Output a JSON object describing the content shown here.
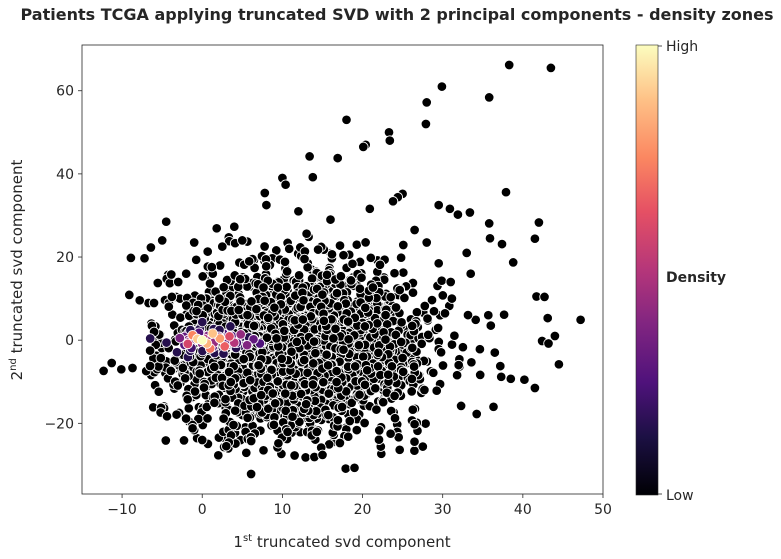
{
  "chart_data": {
    "type": "scatter",
    "title": "Patients TCGA applying truncated SVD with 2 principal components - density zones",
    "xlabel": {
      "prefix": "1",
      "superscript": "st",
      "text": " truncated svd component"
    },
    "ylabel": {
      "prefix": "2",
      "superscript": "nd",
      "text": " truncated svd component"
    },
    "xlim": [
      -15,
      50
    ],
    "ylim": [
      -37,
      71
    ],
    "xticks": [
      -10,
      0,
      10,
      20,
      30,
      40,
      50
    ],
    "yticks": [
      -20,
      0,
      20,
      40,
      60
    ],
    "xtick_labels": [
      "−10",
      "0",
      "10",
      "20",
      "30",
      "40",
      "50"
    ],
    "ytick_labels": [
      "−20",
      "0",
      "20",
      "40",
      "60"
    ],
    "grid": false,
    "colormap": "magma",
    "colorbar": {
      "title": "Density",
      "high_label": "High",
      "low_label": "Low"
    },
    "marker": {
      "edge_color": "#ffffff",
      "fill_color": "#000000"
    },
    "cluster": {
      "description_center": [
        12,
        -2
      ],
      "spread": [
        9,
        11
      ],
      "count": 2600
    },
    "outliers": [
      [
        38.3,
        66.2
      ],
      [
        43.5,
        65.5
      ],
      [
        29.9,
        61.0
      ],
      [
        28.0,
        57.2
      ],
      [
        35.8,
        58.4
      ],
      [
        18.0,
        53.0
      ],
      [
        27.9,
        52.0
      ],
      [
        23.3,
        50.0
      ],
      [
        23.4,
        48.0
      ],
      [
        20.4,
        47.0
      ],
      [
        20.1,
        46.5
      ],
      [
        13.4,
        44.2
      ],
      [
        16.9,
        43.8
      ],
      [
        10.0,
        39.0
      ],
      [
        13.8,
        39.2
      ],
      [
        10.4,
        37.4
      ],
      [
        37.9,
        35.6
      ],
      [
        7.8,
        35.4
      ],
      [
        25.0,
        35.2
      ],
      [
        24.4,
        34.4
      ],
      [
        23.8,
        33.4
      ],
      [
        29.5,
        32.5
      ],
      [
        30.9,
        31.6
      ],
      [
        20.9,
        31.6
      ],
      [
        31.9,
        30.2
      ],
      [
        33.4,
        30.7
      ],
      [
        35.8,
        28.1
      ],
      [
        42.0,
        28.3
      ],
      [
        35.9,
        24.5
      ],
      [
        41.5,
        24.4
      ],
      [
        37.4,
        23.1
      ],
      [
        4.0,
        27.3
      ],
      [
        -4.5,
        28.5
      ],
      [
        1.8,
        26.9
      ],
      [
        38.8,
        18.7
      ],
      [
        -6.4,
        22.3
      ],
      [
        -7.2,
        19.7
      ],
      [
        -8.9,
        19.8
      ],
      [
        -9.1,
        10.9
      ],
      [
        -7.8,
        9.6
      ],
      [
        41.7,
        10.5
      ],
      [
        42.7,
        10.4
      ],
      [
        43.1,
        5.3
      ],
      [
        47.2,
        4.9
      ],
      [
        42.4,
        -0.2
      ],
      [
        43.2,
        -0.8
      ],
      [
        44.5,
        -5.8
      ],
      [
        -12.3,
        -7.4
      ],
      [
        -11.3,
        -5.5
      ],
      [
        -10.1,
        -7.0
      ],
      [
        -8.7,
        -6.7
      ],
      [
        -6.5,
        -6.2
      ],
      [
        -5.2,
        -17.4
      ],
      [
        -4.4,
        -18.3
      ],
      [
        -3.2,
        -17.9
      ],
      [
        -1.2,
        -21.2
      ],
      [
        2.0,
        -27.7
      ],
      [
        5.5,
        -27.1
      ],
      [
        6.1,
        -32.2
      ],
      [
        12.9,
        -28.2
      ],
      [
        14.0,
        -28.1
      ],
      [
        15.0,
        -27.6
      ],
      [
        17.9,
        -30.9
      ],
      [
        19.0,
        -30.7
      ],
      [
        26.5,
        -20.2
      ],
      [
        32.3,
        -15.8
      ],
      [
        37.3,
        -8.8
      ],
      [
        38.5,
        -9.3
      ],
      [
        40.2,
        -9.5
      ],
      [
        41.5,
        -11.5
      ],
      [
        23.5,
        -22.5
      ],
      [
        9.5,
        -24.8
      ],
      [
        3.0,
        -25.5
      ],
      [
        0.0,
        -24.0
      ],
      [
        32.0,
        -6.0
      ],
      [
        36.5,
        -3.0
      ],
      [
        36.0,
        3.5
      ],
      [
        33.5,
        16.0
      ],
      [
        33.0,
        21.0
      ],
      [
        31.0,
        14.0
      ],
      [
        -2.0,
        16.0
      ],
      [
        -5.0,
        24.0
      ],
      [
        -3.0,
        14.0
      ],
      [
        -6.0,
        2.0
      ],
      [
        -6.5,
        -2.5
      ],
      [
        29.5,
        18.5
      ],
      [
        28.0,
        23.5
      ],
      [
        26.5,
        26.5
      ],
      [
        16.0,
        29.0
      ],
      [
        12.0,
        31.0
      ],
      [
        8.0,
        32.5
      ],
      [
        5.0,
        24.0
      ],
      [
        2.5,
        22.5
      ],
      [
        -1.0,
        23.5
      ],
      [
        44.0,
        1.0
      ]
    ],
    "hotspots": [
      {
        "x": 0.0,
        "y": 0.0,
        "level": 1.0
      },
      {
        "x": -0.6,
        "y": 0.3,
        "level": 0.9
      },
      {
        "x": 1.3,
        "y": 1.6,
        "level": 0.88
      },
      {
        "x": 0.6,
        "y": -0.8,
        "level": 0.85
      },
      {
        "x": 2.2,
        "y": 0.4,
        "level": 0.8
      },
      {
        "x": -1.2,
        "y": 1.2,
        "level": 0.75
      },
      {
        "x": 1.0,
        "y": -2.0,
        "level": 0.72
      },
      {
        "x": 2.8,
        "y": -1.5,
        "level": 0.66
      },
      {
        "x": 3.4,
        "y": 0.9,
        "level": 0.6
      },
      {
        "x": -1.8,
        "y": -0.9,
        "level": 0.58
      },
      {
        "x": 4.0,
        "y": -0.6,
        "level": 0.5
      },
      {
        "x": 4.8,
        "y": 1.4,
        "level": 0.42
      },
      {
        "x": 5.6,
        "y": -1.2,
        "level": 0.38
      },
      {
        "x": -2.8,
        "y": 0.5,
        "level": 0.36
      },
      {
        "x": 6.4,
        "y": 0.2,
        "level": 0.3
      },
      {
        "x": 7.2,
        "y": -0.8,
        "level": 0.25
      }
    ]
  }
}
